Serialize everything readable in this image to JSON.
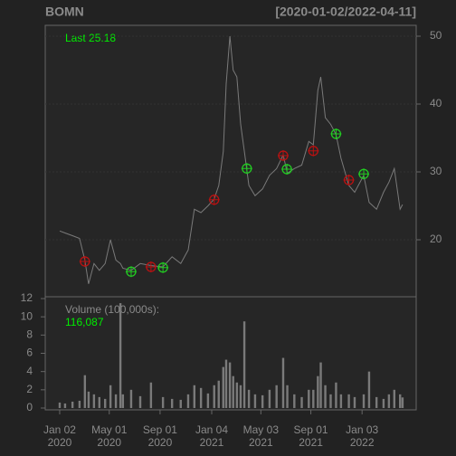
{
  "chart_data": [
    {
      "type": "line",
      "title": "BOMN",
      "subtitle": "[2020-01-02/2022-04-11]",
      "annotation": "Last 25.18",
      "color": "#7a7a7a",
      "annotation_color": "#00ee00",
      "x": [
        "2020-01-02",
        "2020-01-15",
        "2020-02-02",
        "2020-02-19",
        "2020-03-03",
        "2020-03-12",
        "2020-03-25",
        "2020-04-07",
        "2020-04-21",
        "2020-05-04",
        "2020-05-17",
        "2020-05-28",
        "2020-06-03",
        "2020-06-23",
        "2020-07-15",
        "2020-08-10",
        "2020-09-08",
        "2020-09-30",
        "2020-10-21",
        "2020-11-08",
        "2020-11-23",
        "2020-12-09",
        "2020-12-26",
        "2021-01-10",
        "2021-01-21",
        "2021-02-01",
        "2021-02-08",
        "2021-02-17",
        "2021-02-25",
        "2021-03-06",
        "2021-03-15",
        "2021-03-24",
        "2021-04-04",
        "2021-04-19",
        "2021-05-07",
        "2021-05-24",
        "2021-06-10",
        "2021-06-26",
        "2021-07-06",
        "2021-07-23",
        "2021-08-10",
        "2021-08-27",
        "2021-09-07",
        "2021-09-18",
        "2021-09-25",
        "2021-10-06",
        "2021-10-19",
        "2021-11-01",
        "2021-11-13",
        "2021-12-02",
        "2021-12-16",
        "2022-01-07",
        "2022-01-20",
        "2022-02-07",
        "2022-02-24",
        "2022-03-09",
        "2022-03-22",
        "2022-04-05",
        "2022-04-11"
      ],
      "values": [
        21.3,
        21.0,
        20.6,
        20.2,
        17.0,
        13.5,
        16.5,
        15.5,
        16.5,
        20.0,
        17.0,
        16.5,
        15.8,
        15.5,
        16.5,
        16.2,
        16.0,
        17.5,
        16.5,
        18.5,
        24.5,
        24.0,
        25.0,
        26.0,
        28.0,
        33.0,
        43.0,
        50.0,
        45.0,
        44.0,
        37.0,
        33.0,
        28.0,
        26.5,
        27.5,
        29.5,
        30.5,
        32.5,
        29.8,
        30.5,
        31.0,
        34.5,
        34.0,
        42.0,
        44.0,
        38.0,
        37.0,
        35.5,
        32.0,
        28.0,
        27.0,
        29.5,
        25.5,
        24.5,
        27.0,
        28.5,
        30.5,
        24.5,
        25.18
      ],
      "signals": [
        {
          "color": "#22cc22",
          "x": [
            "2020-06-23",
            "2020-09-08",
            "2021-03-30",
            "2021-07-05",
            "2021-11-01",
            "2022-01-07"
          ],
          "values": [
            15.3,
            15.9,
            30.5,
            30.4,
            35.6,
            29.7
          ]
        },
        {
          "color": "#bb1111",
          "x": [
            "2020-03-03",
            "2020-08-10",
            "2021-01-10",
            "2021-06-26",
            "2021-09-07",
            "2021-12-02"
          ],
          "values": [
            16.8,
            16.0,
            25.9,
            32.4,
            33.1,
            28.8
          ]
        }
      ],
      "xlim": [
        "2019-11-28",
        "2022-05-14"
      ],
      "ylim": [
        11.6,
        51.6
      ],
      "yticks": [
        20,
        30,
        40,
        50
      ],
      "grid": true
    },
    {
      "type": "bar",
      "title": "Volume (100,000s):",
      "annotation": "116,087",
      "color": "#7a7a7a",
      "annotation_color": "#00ee00",
      "x": [
        "2020-01-02",
        "2020-01-15",
        "2020-02-02",
        "2020-02-19",
        "2020-03-03",
        "2020-03-12",
        "2020-03-25",
        "2020-04-07",
        "2020-04-21",
        "2020-05-04",
        "2020-05-17",
        "2020-05-28",
        "2020-06-03",
        "2020-06-23",
        "2020-07-15",
        "2020-08-10",
        "2020-09-08",
        "2020-09-30",
        "2020-10-21",
        "2020-11-08",
        "2020-11-23",
        "2020-12-09",
        "2020-12-26",
        "2021-01-10",
        "2021-01-21",
        "2021-02-01",
        "2021-02-08",
        "2021-02-17",
        "2021-02-25",
        "2021-03-06",
        "2021-03-15",
        "2021-03-24",
        "2021-04-04",
        "2021-04-19",
        "2021-05-07",
        "2021-05-24",
        "2021-06-10",
        "2021-06-26",
        "2021-07-06",
        "2021-07-23",
        "2021-08-10",
        "2021-08-27",
        "2021-09-07",
        "2021-09-18",
        "2021-09-25",
        "2021-10-06",
        "2021-10-19",
        "2021-11-01",
        "2021-11-13",
        "2021-12-02",
        "2021-12-16",
        "2022-01-07",
        "2022-01-20",
        "2022-02-07",
        "2022-02-24",
        "2022-03-09",
        "2022-03-22",
        "2022-04-05",
        "2022-04-11"
      ],
      "values": [
        0.6,
        0.5,
        0.7,
        0.8,
        3.6,
        1.8,
        1.5,
        1.2,
        1.0,
        2.5,
        1.5,
        11.5,
        1.5,
        2.0,
        1.3,
        2.8,
        1.2,
        1.0,
        0.9,
        1.5,
        2.5,
        2.2,
        1.6,
        2.5,
        3.0,
        4.5,
        5.3,
        5.0,
        3.5,
        2.8,
        2.5,
        9.5,
        2.0,
        1.5,
        1.4,
        2.0,
        2.5,
        5.5,
        2.5,
        1.5,
        1.2,
        2.0,
        2.0,
        3.5,
        5.0,
        2.5,
        1.5,
        2.8,
        1.5,
        1.5,
        1.2,
        1.5,
        4.0,
        1.2,
        1.0,
        1.5,
        2.0,
        1.5,
        1.16087
      ],
      "xlim": [
        "2019-11-28",
        "2022-05-14"
      ],
      "ylim": [
        -0.2,
        12.2
      ],
      "yticks": [
        0,
        2,
        4,
        6,
        8,
        10,
        12
      ],
      "xticks": [
        {
          "value": "2020-01-02",
          "label": "Jan 02",
          "year": "2020"
        },
        {
          "value": "2020-05-01",
          "label": "May 01",
          "year": "2020"
        },
        {
          "value": "2020-09-01",
          "label": "Sep 01",
          "year": "2020"
        },
        {
          "value": "2021-01-04",
          "label": "Jan 04",
          "year": "2021"
        },
        {
          "value": "2021-05-03",
          "label": "May 03",
          "year": "2021"
        },
        {
          "value": "2021-09-01",
          "label": "Sep 01",
          "year": "2021"
        },
        {
          "value": "2022-01-03",
          "label": "Jan 03",
          "year": "2022"
        }
      ]
    }
  ]
}
